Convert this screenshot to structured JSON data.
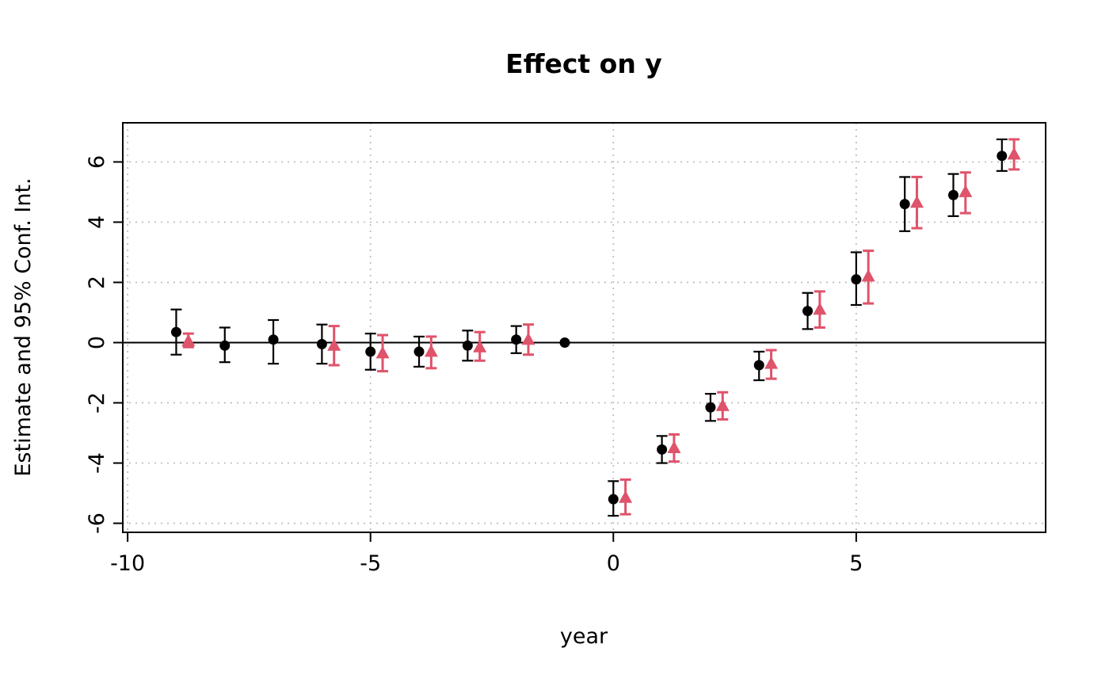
{
  "chart_data": {
    "type": "scatter",
    "title": "Effect on y",
    "xlabel": "year",
    "ylabel": "Estimate and 95% Conf. Int.",
    "xlim": [
      -10.1,
      8.9
    ],
    "ylim": [
      -6.3,
      7.3
    ],
    "xticks": [
      -10,
      -5,
      0,
      5
    ],
    "yticks": [
      -6,
      -4,
      -2,
      0,
      2,
      4,
      6
    ],
    "grid": true,
    "zero_line": true,
    "legend": "none",
    "series": [
      {
        "name": "circles",
        "marker": "circle",
        "color": "#000000",
        "x_offset": 0,
        "line_width": 2.2,
        "cap_halfwidth": 7,
        "points": [
          {
            "x": -9,
            "y": 0.35,
            "lo": -0.4,
            "hi": 1.1
          },
          {
            "x": -8,
            "y": -0.1,
            "lo": -0.65,
            "hi": 0.5
          },
          {
            "x": -7,
            "y": 0.1,
            "lo": -0.7,
            "hi": 0.75
          },
          {
            "x": -6,
            "y": -0.05,
            "lo": -0.7,
            "hi": 0.6
          },
          {
            "x": -5,
            "y": -0.3,
            "lo": -0.9,
            "hi": 0.3
          },
          {
            "x": -4,
            "y": -0.3,
            "lo": -0.8,
            "hi": 0.2
          },
          {
            "x": -3,
            "y": -0.1,
            "lo": -0.6,
            "hi": 0.4
          },
          {
            "x": -2,
            "y": 0.1,
            "lo": -0.35,
            "hi": 0.55
          },
          {
            "x": -1,
            "y": 0,
            "lo": 0,
            "hi": 0
          },
          {
            "x": 0,
            "y": -5.2,
            "lo": -5.75,
            "hi": -4.6
          },
          {
            "x": 1,
            "y": -3.55,
            "lo": -4.0,
            "hi": -3.1
          },
          {
            "x": 2,
            "y": -2.15,
            "lo": -2.6,
            "hi": -1.7
          },
          {
            "x": 3,
            "y": -0.75,
            "lo": -1.25,
            "hi": -0.3
          },
          {
            "x": 4,
            "y": 1.05,
            "lo": 0.45,
            "hi": 1.65
          },
          {
            "x": 5,
            "y": 2.1,
            "lo": 1.25,
            "hi": 3.0
          },
          {
            "x": 6,
            "y": 4.6,
            "lo": 3.7,
            "hi": 5.5
          },
          {
            "x": 7,
            "y": 4.9,
            "lo": 4.2,
            "hi": 5.6
          },
          {
            "x": 8,
            "y": 6.2,
            "lo": 5.7,
            "hi": 6.75
          }
        ]
      },
      {
        "name": "triangles",
        "marker": "triangle",
        "color": "#DF536B",
        "x_offset": 0.25,
        "line_width": 3,
        "cap_halfwidth": 7,
        "points": [
          {
            "x": -9,
            "y": 0.05,
            "lo": -0.15,
            "hi": 0.3
          },
          {
            "x": -6,
            "y": -0.1,
            "lo": -0.75,
            "hi": 0.55
          },
          {
            "x": -5,
            "y": -0.35,
            "lo": -0.95,
            "hi": 0.25
          },
          {
            "x": -4,
            "y": -0.3,
            "lo": -0.85,
            "hi": 0.2
          },
          {
            "x": -3,
            "y": -0.15,
            "lo": -0.6,
            "hi": 0.35
          },
          {
            "x": -2,
            "y": 0.1,
            "lo": -0.4,
            "hi": 0.6
          },
          {
            "x": 0,
            "y": -5.15,
            "lo": -5.7,
            "hi": -4.55
          },
          {
            "x": 1,
            "y": -3.5,
            "lo": -3.95,
            "hi": -3.05
          },
          {
            "x": 2,
            "y": -2.1,
            "lo": -2.55,
            "hi": -1.65
          },
          {
            "x": 3,
            "y": -0.7,
            "lo": -1.2,
            "hi": -0.25
          },
          {
            "x": 4,
            "y": 1.1,
            "lo": 0.5,
            "hi": 1.7
          },
          {
            "x": 5,
            "y": 2.2,
            "lo": 1.3,
            "hi": 3.05
          },
          {
            "x": 6,
            "y": 4.65,
            "lo": 3.8,
            "hi": 5.5
          },
          {
            "x": 7,
            "y": 5.0,
            "lo": 4.3,
            "hi": 5.65
          },
          {
            "x": 8,
            "y": 6.25,
            "lo": 5.75,
            "hi": 6.75
          }
        ]
      }
    ]
  }
}
